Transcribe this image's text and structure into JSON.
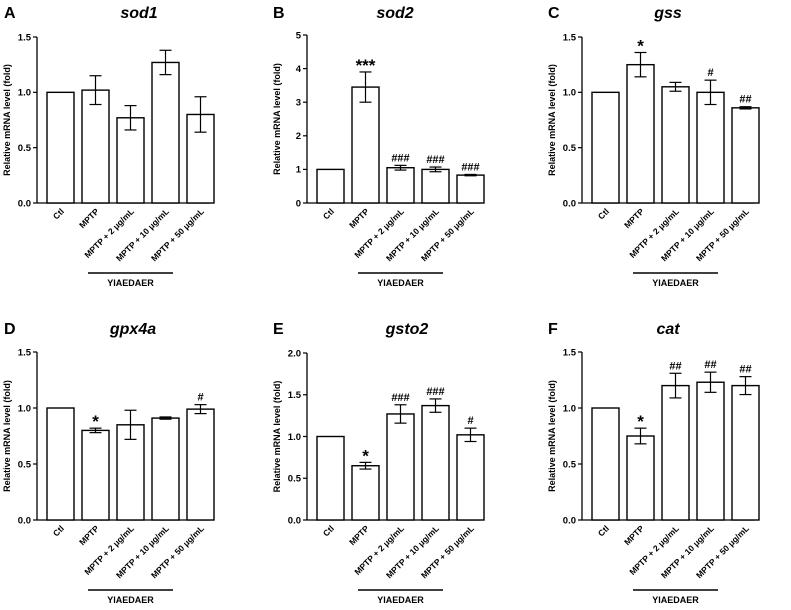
{
  "colors": {
    "bar_fill": "#ffffff",
    "stroke": "#000000",
    "background": "#ffffff"
  },
  "chart_data": [
    {
      "panel": "A",
      "title": "sod1",
      "type": "bar",
      "ylabel": "Relative mRNA level (fold)",
      "ylim": [
        0,
        1.5
      ],
      "yticks": [
        "0.0",
        "0.5",
        "1.0",
        "1.5"
      ],
      "categories": [
        "Ctl",
        "MPTP",
        "MPTP + 2 μg/mL",
        "MPTP + 10 μg/mL",
        "MPTP + 50 μg/mL"
      ],
      "values": [
        1.0,
        1.02,
        0.77,
        1.27,
        0.8
      ],
      "errors": [
        0,
        0.13,
        0.11,
        0.11,
        0.16
      ],
      "significance": [
        "",
        "",
        "",
        "",
        ""
      ],
      "group_label": "YIAEDAER"
    },
    {
      "panel": "B",
      "title": "sod2",
      "type": "bar",
      "ylabel": "Relative mRNA level (fold)",
      "ylim": [
        0,
        5
      ],
      "yticks": [
        "0",
        "1",
        "2",
        "3",
        "4",
        "5"
      ],
      "categories": [
        "Ctl",
        "MPTP",
        "MPTP + 2 μg/mL",
        "MPTP + 10 μg/mL",
        "MPTP + 50 μg/mL"
      ],
      "values": [
        1.0,
        3.45,
        1.05,
        1.0,
        0.83
      ],
      "errors": [
        0,
        0.45,
        0.07,
        0.07,
        0.02
      ],
      "significance": [
        "",
        "***",
        "###",
        "###",
        "###"
      ],
      "group_label": "YIAEDAER"
    },
    {
      "panel": "C",
      "title": "gss",
      "type": "bar",
      "ylabel": "Relative mRNA level (fold)",
      "ylim": [
        0,
        1.5
      ],
      "yticks": [
        "0.0",
        "0.5",
        "1.0",
        "1.5"
      ],
      "categories": [
        "Ctl",
        "MPTP",
        "MPTP + 2 μg/mL",
        "MPTP + 10 μg/mL",
        "MPTP + 50 μg/mL"
      ],
      "values": [
        1.0,
        1.25,
        1.05,
        1.0,
        0.86
      ],
      "errors": [
        0,
        0.11,
        0.04,
        0.11,
        0.01
      ],
      "significance": [
        "",
        "*",
        "",
        "#",
        "##"
      ],
      "group_label": "YIAEDAER"
    },
    {
      "panel": "D",
      "title": "gpx4a",
      "type": "bar",
      "ylabel": "Relative mRNA level (fold)",
      "ylim": [
        0,
        1.5
      ],
      "yticks": [
        "0.0",
        "0.5",
        "1.0",
        "1.5"
      ],
      "categories": [
        "Ctl",
        "MPTP",
        "MPTP + 2 μg/mL",
        "MPTP + 10 μg/mL",
        "MPTP + 50 μg/mL"
      ],
      "values": [
        1.0,
        0.8,
        0.85,
        0.91,
        0.99
      ],
      "errors": [
        0,
        0.02,
        0.13,
        0.01,
        0.04
      ],
      "significance": [
        "",
        "*",
        "",
        "",
        "#"
      ],
      "group_label": "YIAEDAER"
    },
    {
      "panel": "E",
      "title": "gsto2",
      "type": "bar",
      "ylabel": "Relative mRNA level (fold)",
      "ylim": [
        0,
        2.0
      ],
      "yticks": [
        "0.0",
        "0.5",
        "1.0",
        "1.5",
        "2.0"
      ],
      "categories": [
        "Ctl",
        "MPTP",
        "MPTP + 2 μg/mL",
        "MPTP + 10 μg/mL",
        "MPTP + 50 μg/mL"
      ],
      "values": [
        1.0,
        0.65,
        1.27,
        1.37,
        1.02
      ],
      "errors": [
        0,
        0.04,
        0.11,
        0.08,
        0.08
      ],
      "significance": [
        "",
        "*",
        "###",
        "###",
        "#"
      ],
      "group_label": "YIAEDAER"
    },
    {
      "panel": "F",
      "title": "cat",
      "type": "bar",
      "ylabel": "Relative mRNA level (fold)",
      "ylim": [
        0,
        1.5
      ],
      "yticks": [
        "0.0",
        "0.5",
        "1.0",
        "1.5"
      ],
      "categories": [
        "Ctl",
        "MPTP",
        "MPTP + 2 μg/mL",
        "MPTP + 10 μg/mL",
        "MPTP + 50 μg/mL"
      ],
      "values": [
        1.0,
        0.75,
        1.2,
        1.23,
        1.2
      ],
      "errors": [
        0,
        0.07,
        0.11,
        0.09,
        0.08
      ],
      "significance": [
        "",
        "*",
        "##",
        "##",
        "##"
      ],
      "group_label": "YIAEDAER"
    }
  ]
}
